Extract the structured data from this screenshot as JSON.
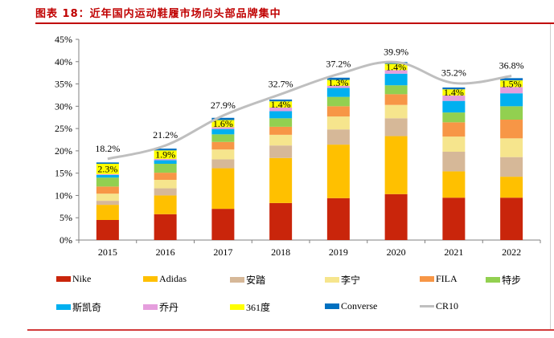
{
  "header": {
    "title": "图表 18：近年国内运动鞋履市场向头部品牌集中"
  },
  "chart_data": {
    "type": "bar",
    "stacked": true,
    "title": "图表 18：近年国内运动鞋履市场向头部品牌集中",
    "xlabel": "",
    "ylabel": "",
    "ylim": [
      0,
      45
    ],
    "yticks": [
      "0%",
      "5%",
      "10%",
      "15%",
      "20%",
      "25%",
      "30%",
      "35%",
      "40%",
      "45%"
    ],
    "categories": [
      "2015",
      "2016",
      "2017",
      "2018",
      "2019",
      "2020",
      "2021",
      "2022"
    ],
    "series": [
      {
        "name": "Nike",
        "color": "#c9250b",
        "values": [
          4.5,
          5.8,
          7.0,
          8.3,
          9.4,
          10.3,
          9.5,
          9.5
        ]
      },
      {
        "name": "Adidas",
        "color": "#ffc000",
        "values": [
          3.4,
          4.2,
          9.1,
          10.1,
          12.0,
          13.0,
          5.9,
          4.7
        ]
      },
      {
        "name": "安踏",
        "color": "#d6b898",
        "values": [
          0.9,
          1.6,
          2.0,
          2.8,
          3.4,
          4.0,
          4.4,
          4.4
        ]
      },
      {
        "name": "李宁",
        "color": "#f6e58d",
        "values": [
          1.6,
          1.9,
          2.2,
          2.4,
          2.9,
          3.0,
          3.4,
          4.2
        ]
      },
      {
        "name": "FILA",
        "color": "#f79646",
        "values": [
          1.6,
          1.6,
          1.7,
          1.8,
          2.3,
          2.4,
          3.2,
          4.2
        ]
      },
      {
        "name": "特步",
        "color": "#92d050",
        "values": [
          2.0,
          2.0,
          1.7,
          1.9,
          2.1,
          2.0,
          2.2,
          3.0
        ]
      },
      {
        "name": "斯凯奇",
        "color": "#00b0f0",
        "values": [
          0.6,
          0.8,
          1.2,
          1.6,
          2.0,
          2.6,
          2.6,
          2.9
        ]
      },
      {
        "name": "乔丹",
        "color": "#e59edd",
        "values": [
          0.2,
          0.3,
          0.4,
          0.8,
          0.5,
          0.8,
          1.2,
          1.4
        ]
      },
      {
        "name": "361度",
        "color": "#ffff00",
        "values": [
          2.3,
          1.9,
          1.6,
          1.4,
          1.3,
          1.4,
          1.4,
          1.5
        ]
      },
      {
        "name": "Converse",
        "color": "#0070c0",
        "values": [
          0.3,
          0.4,
          0.5,
          0.4,
          0.5,
          0.4,
          0.4,
          0.5
        ]
      }
    ],
    "line": {
      "name": "CR10",
      "color": "#bfbfbf",
      "values": [
        18.2,
        21.2,
        27.9,
        32.7,
        37.2,
        39.9,
        35.2,
        36.8
      ],
      "labels": [
        "18.2%",
        "21.2%",
        "27.9%",
        "32.7%",
        "37.2%",
        "39.9%",
        "35.2%",
        "36.8%"
      ]
    },
    "bar_labels_series": "361度",
    "bar_labels": [
      "2.3%",
      "1.9%",
      "1.6%",
      "1.4%",
      "1.3%",
      "1.4%",
      "1.4%",
      "1.5%"
    ],
    "legend_position": "bottom",
    "grid": false
  },
  "legend": {
    "items": [
      {
        "label": "Nike",
        "color": "#c9250b",
        "kind": "bar"
      },
      {
        "label": "Adidas",
        "color": "#ffc000",
        "kind": "bar"
      },
      {
        "label": "安踏",
        "color": "#d6b898",
        "kind": "bar"
      },
      {
        "label": "李宁",
        "color": "#f6e58d",
        "kind": "bar"
      },
      {
        "label": "FILA",
        "color": "#f79646",
        "kind": "bar"
      },
      {
        "label": "特步",
        "color": "#92d050",
        "kind": "bar"
      },
      {
        "label": "斯凯奇",
        "color": "#00b0f0",
        "kind": "bar"
      },
      {
        "label": "乔丹",
        "color": "#e59edd",
        "kind": "bar"
      },
      {
        "label": "361度",
        "color": "#ffff00",
        "kind": "bar"
      },
      {
        "label": "Converse",
        "color": "#0070c0",
        "kind": "bar"
      },
      {
        "label": "CR10",
        "color": "#bfbfbf",
        "kind": "line"
      }
    ]
  }
}
